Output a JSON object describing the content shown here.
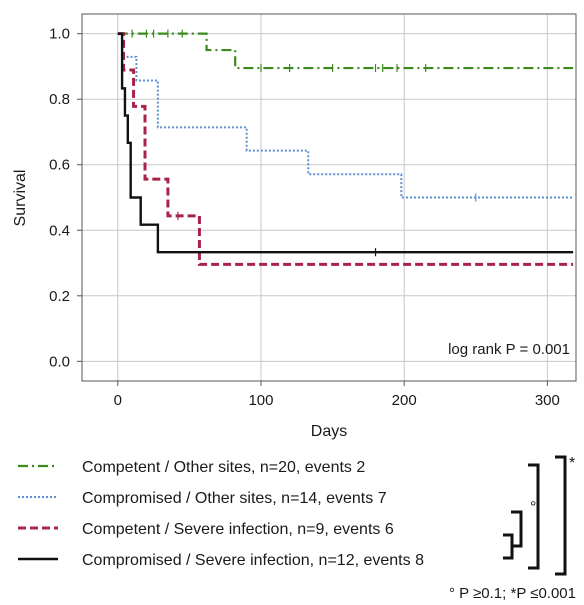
{
  "colors": {
    "competent_other": "#3a8a1e",
    "compromised_other": "#5b8fd6",
    "competent_severe": "#a8234a",
    "compromised_severe": "#111111",
    "grid": "#c8c8c8",
    "axis": "#555555"
  },
  "annotation": "log rank P = 0.001",
  "footnote": "° P ≥0.1;  *P ≤0.001",
  "bracket_marks": {
    "inner": "°",
    "outer": "*"
  },
  "chart_data": {
    "type": "line",
    "xlabel": "Days",
    "ylabel": "Survival",
    "xlim": [
      -25,
      320
    ],
    "ylim": [
      -0.06,
      1.06
    ],
    "x_ticks": [
      0,
      100,
      200,
      300
    ],
    "y_ticks": [
      0.0,
      0.2,
      0.4,
      0.6,
      0.8,
      1.0
    ],
    "y_tick_labels": [
      "0.0",
      "0.2",
      "0.4",
      "0.6",
      "0.8",
      "1.0"
    ],
    "grid": true,
    "legend_position": "below",
    "series": [
      {
        "name": "Competent / Other sites, n=20, events 2",
        "style": "dashdot",
        "steps": [
          [
            0,
            1.0
          ],
          [
            62,
            0.95
          ],
          [
            82,
            0.895
          ],
          [
            318,
            0.895
          ]
        ],
        "censor": [
          [
            10,
            1.0
          ],
          [
            20,
            1.0
          ],
          [
            25,
            1.0
          ],
          [
            35,
            1.0
          ],
          [
            45,
            1.0
          ],
          [
            100,
            0.895
          ],
          [
            120,
            0.895
          ],
          [
            150,
            0.895
          ],
          [
            180,
            0.895
          ],
          [
            185,
            0.895
          ],
          [
            195,
            0.895
          ],
          [
            215,
            0.895
          ]
        ]
      },
      {
        "name": "Compromised / Other sites, n=14, events 7",
        "style": "dotted",
        "steps": [
          [
            0,
            1.0
          ],
          [
            3,
            0.929
          ],
          [
            13,
            0.857
          ],
          [
            28,
            0.714
          ],
          [
            90,
            0.643
          ],
          [
            133,
            0.571
          ],
          [
            198,
            0.5
          ],
          [
            318,
            0.5
          ]
        ],
        "censor": [
          [
            250,
            0.5
          ]
        ]
      },
      {
        "name": "Competent / Severe infection, n=9, events 6",
        "style": "dashed",
        "steps": [
          [
            0,
            1.0
          ],
          [
            4,
            0.889
          ],
          [
            11,
            0.778
          ],
          [
            19,
            0.556
          ],
          [
            35,
            0.444
          ],
          [
            57,
            0.296
          ],
          [
            318,
            0.296
          ]
        ],
        "censor": [
          [
            42,
            0.444
          ]
        ]
      },
      {
        "name": "Compromised / Severe infection, n=12, events 8",
        "style": "solid",
        "steps": [
          [
            0,
            1.0
          ],
          [
            3,
            0.833
          ],
          [
            5,
            0.75
          ],
          [
            7,
            0.667
          ],
          [
            9,
            0.5
          ],
          [
            16,
            0.417
          ],
          [
            28,
            0.333
          ],
          [
            318,
            0.333
          ]
        ],
        "censor": [
          [
            180,
            0.333
          ]
        ]
      }
    ]
  }
}
